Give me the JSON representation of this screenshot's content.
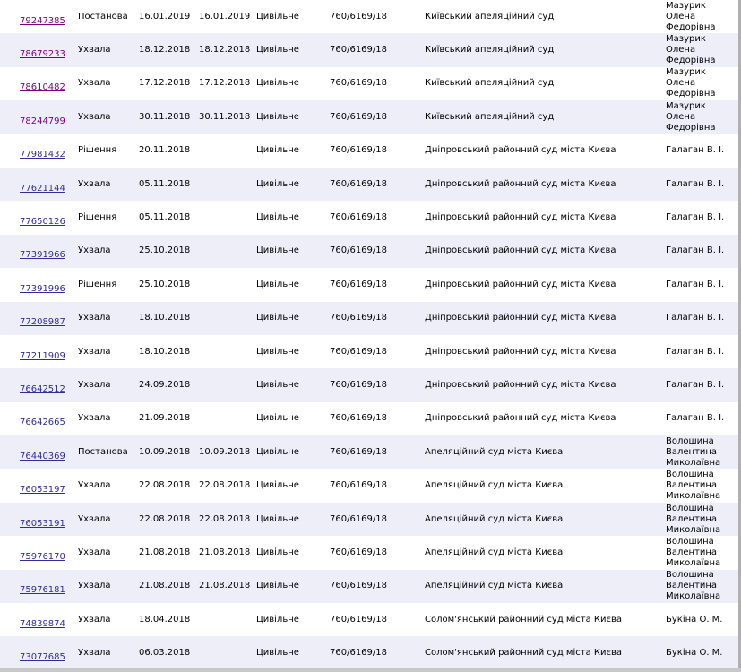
{
  "table": {
    "rows": [
      [
        "79247385",
        "Постанова",
        "16.01.2019",
        "16.01.2019",
        "Цивільне",
        "760/6169/18",
        "Київський апеляційний суд",
        "Мазурик Олена Федорівна"
      ],
      [
        "78679233",
        "Ухвала",
        "18.12.2018",
        "18.12.2018",
        "Цивільне",
        "760/6169/18",
        "Київський апеляційний суд",
        "Мазурик Олена Федорівна"
      ],
      [
        "78610482",
        "Ухвала",
        "17.12.2018",
        "17.12.2018",
        "Цивільне",
        "760/6169/18",
        "Київський апеляційний суд",
        "Мазурик Олена Федорівна"
      ],
      [
        "78244799",
        "Ухвала",
        "30.11.2018",
        "30.11.2018",
        "Цивільне",
        "760/6169/18",
        "Київський апеляційний суд",
        "Мазурик Олена Федорівна"
      ],
      [
        "77981432",
        "Рішення",
        "20.11.2018",
        null,
        "Цивільне",
        "760/6169/18",
        "Дніпровський районний суд міста Києва",
        "Галаган В. І."
      ],
      [
        "77621144",
        "Ухвала",
        "05.11.2018",
        null,
        "Цивільне",
        "760/6169/18",
        "Дніпровський районний суд міста Києва",
        "Галаган В. І."
      ],
      [
        "77650126",
        "Рішення",
        "05.11.2018",
        null,
        "Цивільне",
        "760/6169/18",
        "Дніпровський районний суд міста Києва",
        "Галаган В. І."
      ],
      [
        "77391966",
        "Ухвала",
        "25.10.2018",
        null,
        "Цивільне",
        "760/6169/18",
        "Дніпровський районний суд міста Києва",
        "Галаган В. І."
      ],
      [
        "77391996",
        "Рішення",
        "25.10.2018",
        null,
        "Цивільне",
        "760/6169/18",
        "Дніпровський районний суд міста Києва",
        "Галаган В. І."
      ],
      [
        "77208987",
        "Ухвала",
        "18.10.2018",
        null,
        "Цивільне",
        "760/6169/18",
        "Дніпровський районний суд міста Києва",
        "Галаган В. І."
      ],
      [
        "77211909",
        "Ухвала",
        "18.10.2018",
        null,
        "Цивільне",
        "760/6169/18",
        "Дніпровський районний суд міста Києва",
        "Галаган В. І."
      ],
      [
        "76642512",
        "Ухвала",
        "24.09.2018",
        null,
        "Цивільне",
        "760/6169/18",
        "Дніпровський районний суд міста Києва",
        "Галаган В. І."
      ],
      [
        "76642665",
        "Ухвала",
        "21.09.2018",
        null,
        "Цивільне",
        "760/6169/18",
        "Дніпровський районний суд міста Києва",
        "Галаган В. І."
      ],
      [
        "76440369",
        "Постанова",
        "10.09.2018",
        "10.09.2018",
        "Цивільне",
        "760/6169/18",
        "Апеляційний суд міста Києва",
        "Волошина Валентина Миколаївна"
      ],
      [
        "76053197",
        "Ухвала",
        "22.08.2018",
        "22.08.2018",
        "Цивільне",
        "760/6169/18",
        "Апеляційний суд міста Києва",
        "Волошина Валентина Миколаївна"
      ],
      [
        "76053191",
        "Ухвала",
        "22.08.2018",
        "22.08.2018",
        "Цивільне",
        "760/6169/18",
        "Апеляційний суд міста Києва",
        "Волошина Валентина Миколаївна"
      ],
      [
        "75976170",
        "Ухвала",
        "21.08.2018",
        "21.08.2018",
        "Цивільне",
        "760/6169/18",
        "Апеляційний суд міста Києва",
        "Волошина Валентина Миколаївна"
      ],
      [
        "75976181",
        "Ухвала",
        "21.08.2018",
        "21.08.2018",
        "Цивільне",
        "760/6169/18",
        "Апеляційний суд міста Києва",
        "Волошина Валентина Миколаївна"
      ],
      [
        "74839874",
        "Ухвала",
        "18.04.2018",
        null,
        "Цивільне",
        "760/6169/18",
        "Солом'янський районний суд міста Києва",
        "Букіна О. М."
      ],
      [
        "73077685",
        "Ухвала",
        "06.03.2018",
        null,
        "Цивільне",
        "760/6169/18",
        "Солом'янський районний суд міста Києва",
        "Букіна О. М."
      ]
    ]
  }
}
